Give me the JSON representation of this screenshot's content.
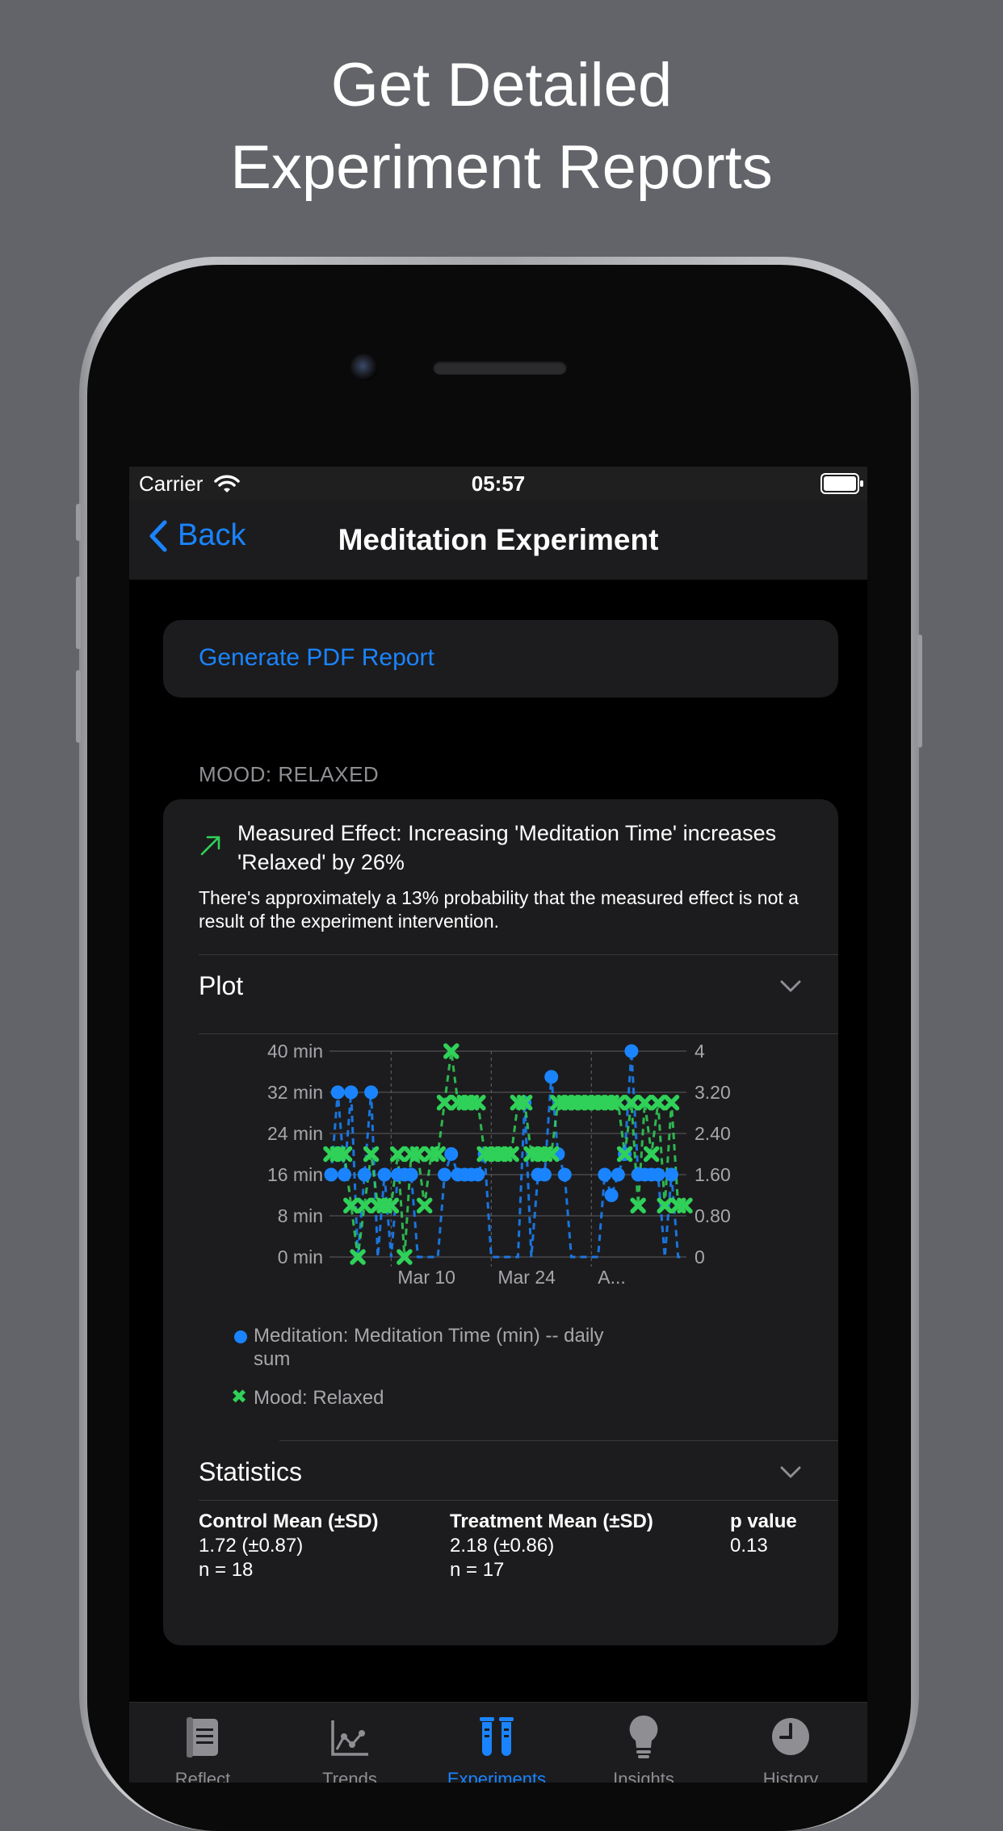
{
  "headline": {
    "line1": "Get Detailed",
    "line2": "Experiment Reports"
  },
  "status_bar": {
    "carrier": "Carrier",
    "time": "05:57"
  },
  "nav": {
    "back_label": "Back",
    "title": "Meditation Experiment"
  },
  "report": {
    "generate_pdf_label": "Generate PDF Report"
  },
  "section": {
    "header": "MOOD: RELAXED"
  },
  "effect": {
    "summary": "Measured Effect: Increasing 'Meditation Time' increases 'Relaxed' by 26%",
    "probability": "There's approximately a 13% probability that the measured effect is not a result of the experiment intervention."
  },
  "plot": {
    "title": "Plot"
  },
  "statistics": {
    "title": "Statistics",
    "control": {
      "header": "Control Mean (±SD)",
      "value": "1.72 (±0.87)",
      "n": "n = 18"
    },
    "treatment": {
      "header": "Treatment Mean (±SD)",
      "value": "2.18 (±0.86)",
      "n": "n = 17"
    },
    "p": {
      "header": "p value",
      "value": "0.13"
    }
  },
  "tabs": [
    {
      "label": "Reflect",
      "icon": "notebook-icon",
      "active": false
    },
    {
      "label": "Trends",
      "icon": "line-chart-icon",
      "active": false
    },
    {
      "label": "Experiments",
      "icon": "test-tubes-icon",
      "active": true
    },
    {
      "label": "Insights",
      "icon": "lightbulb-icon",
      "active": false
    },
    {
      "label": "History",
      "icon": "clock-icon",
      "active": false
    }
  ],
  "colors": {
    "accent": "#1a84ff",
    "green": "#30d158",
    "background": "#636469"
  },
  "chart_data": {
    "type": "line",
    "left_axis": {
      "ticks": [
        "40 min",
        "32 min",
        "24 min",
        "16 min",
        "8 min",
        "0 min"
      ],
      "ylim": [
        0,
        40
      ]
    },
    "right_axis": {
      "ticks": [
        "4",
        "3.20",
        "2.40",
        "1.60",
        "0.80",
        "0"
      ],
      "ylim": [
        0,
        4
      ]
    },
    "x_ticks": [
      "Mar 10",
      "Mar 24",
      "A..."
    ],
    "grid": true,
    "series": [
      {
        "name": "Meditation: Meditation Time (min) -- daily sum",
        "axis": "left",
        "marker": "circle",
        "color": "#1a84ff",
        "values": [
          16,
          32,
          16,
          32,
          0,
          16,
          32,
          0,
          16,
          0,
          16,
          16,
          16,
          0,
          0,
          0,
          0,
          16,
          20,
          16,
          16,
          16,
          16,
          20,
          0,
          0,
          0,
          0,
          0,
          30,
          0,
          16,
          16,
          35,
          20,
          16,
          0,
          0,
          0,
          0,
          0,
          16,
          12,
          16,
          20,
          40,
          16,
          16,
          16,
          16,
          0,
          16,
          0,
          0
        ]
      },
      {
        "name": "Mood: Relaxed",
        "axis": "right",
        "marker": "x",
        "color": "#30d158",
        "values": [
          2,
          2,
          2,
          1,
          0,
          1,
          2,
          1,
          1,
          1,
          2,
          0,
          2,
          2,
          1,
          2,
          2,
          3,
          4,
          3,
          3,
          3,
          3,
          2,
          2,
          2,
          2,
          2,
          3,
          3,
          2,
          2,
          2,
          2,
          3,
          3,
          3,
          3,
          3,
          3,
          3,
          3,
          3,
          3,
          2,
          3,
          1,
          3,
          2,
          3,
          1,
          3,
          1,
          1
        ]
      }
    ]
  }
}
